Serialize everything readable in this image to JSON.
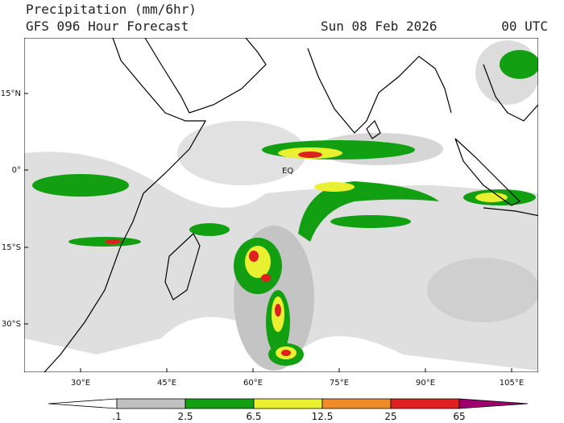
{
  "header": {
    "title": "Precipitation (mm/6hr)",
    "subtitle": "GFS 096 Hour Forecast",
    "date": "Sun 08 Feb 2026",
    "time": "00 UTC"
  },
  "map": {
    "lat_labels": [
      "15°N",
      "0°",
      "15°S",
      "30°S"
    ],
    "lon_labels": [
      "30°E",
      "45°E",
      "60°E",
      "75°E",
      "90°E",
      "105°E"
    ],
    "annotation": "EQ"
  },
  "colorbar": {
    "labels": [
      ".1",
      "2.5",
      "6.5",
      "12.5",
      "25",
      "65"
    ],
    "colors": [
      "#ffffff",
      "#c0c0c0",
      "#12a012",
      "#e8f030",
      "#f08c28",
      "#e02020",
      "#a0006e"
    ]
  }
}
